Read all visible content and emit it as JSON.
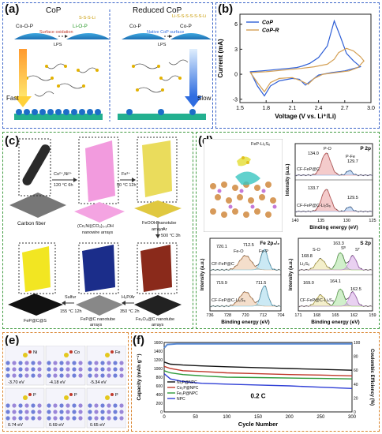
{
  "panels": {
    "a": {
      "label": "(a)",
      "left_title": "CoP",
      "right_title": "Reduced CoP",
      "left_chem_top": "Co-O-P",
      "left_chem_product": "Li-O-P",
      "left_chain": "S-S-S-Li",
      "surface_oxidation": "Surface oxidation",
      "lps_left": "LPS",
      "right_chem_top": "Co-P",
      "right_chem_product": "Co-P",
      "right_chain": "Li-S-S-S-S-S-S-Li",
      "native_surface": "Native CoP surface",
      "lps_right": "LPS",
      "fast": "Fast",
      "slow": "Slow"
    },
    "b": {
      "label": "(b)",
      "ylabel": "Current (mA)",
      "xlabel": "Voltage (V vs. Li⁺/Li)"
    },
    "c": {
      "label": "(c)",
      "carbon_fiber": "Carbon fiber",
      "step1": "Co²⁺,Ni²⁺",
      "step1_cond": "120 °C 6h",
      "nanowire": "(Co,Ni)(CO₃)₀.₅OH",
      "nanowire2": "nanowire arrays",
      "step2": "Fe³⁺",
      "step2_cond": "50 °C 12h",
      "feooh": "FeOOH nanotube",
      "feooh2": "arrays",
      "step3": "Ar",
      "step3_cond": "500 °C 3h",
      "fep_cs": "FeP@C@S",
      "sulfur": "Sulfur",
      "sulfur_cond": "155 °C 12h",
      "fep_c": "FeP@C nanotube",
      "fep_c2": "arrays",
      "h3p": "H₃P/Ar",
      "h3p_cond": "350 °C 2h",
      "fe2o3": "Fe₂O₃@C nanotube",
      "fe2o3_2": "arrays"
    },
    "d": {
      "label": "(d)",
      "struct_title": "FeP-Li₂S₆",
      "p2p_title": "P 2p",
      "p2p_peaks": [
        "134.0",
        "129.7",
        "133.7",
        "129.5"
      ],
      "p2p_labels": [
        "P-O",
        "P-Fe"
      ],
      "p2p_samples": [
        "CF-FeP@C",
        "CF-FeP@C-Li₂S₆"
      ],
      "p2p_xticks": [
        "140",
        "135",
        "130",
        "125"
      ],
      "fe2p_title": "Fe 2p₃/₂",
      "fe2p_peaks": [
        "720.1",
        "712.5",
        "719.9",
        "711.5"
      ],
      "fe2p_labels": [
        "Fe-O",
        "Fe-P"
      ],
      "fe2p_samples": [
        "CF-FeP@C",
        "CF-FeP@C-Li₂S₆"
      ],
      "fe2p_xticks": [
        "736",
        "728",
        "720",
        "712",
        "704"
      ],
      "s2p_title": "S 2p",
      "s2p_peaks": [
        "168.8",
        "163.3",
        "169.0",
        "164.1",
        "162.5"
      ],
      "s2p_labels": [
        "S-O",
        "Sᴮ",
        "Sᵀ"
      ],
      "s2p_sample": "Li₂S₆",
      "s2p_sample2": "CF-FeP@C-Li₂S₆",
      "s2p_xticks": [
        "171",
        "168",
        "165",
        "162",
        "159"
      ],
      "ylabel": "Intensity (a.u.)",
      "xlabel": "Binding energy (eV)"
    },
    "e": {
      "label": "(e)",
      "energies": [
        "-3.70 eV",
        "-4.18 eV",
        "-5.34 eV",
        "0.74 eV",
        "0.69 eV",
        "0.65 eV"
      ],
      "atoms": [
        "Ni",
        "Co",
        "Fe",
        "P",
        "P",
        "P"
      ]
    },
    "f": {
      "label": "(f)",
      "ylabel": "Capacity (mAh g⁻¹)",
      "y2label": "Coulombic Efficiency (%)",
      "xlabel": "Cycle Number",
      "rate": "0.2 C"
    }
  },
  "chart_data": [
    {
      "type": "line",
      "panel": "b",
      "title": "",
      "xlabel": "Voltage (V vs. Li⁺/Li)",
      "ylabel": "Current (mA)",
      "xlim": [
        1.5,
        3.0
      ],
      "ylim": [
        -3.4,
        7.2
      ],
      "x_ticks": [
        "1.5",
        "1.8",
        "2.1",
        "2.4",
        "2.7",
        "3.0"
      ],
      "y_ticks": [
        "-3",
        "0",
        "3",
        "6"
      ],
      "legend_position": "top-left",
      "series": [
        {
          "name": "CoP",
          "color": "#2f5fd6",
          "x": [
            1.62,
            1.75,
            1.85,
            1.95,
            2.05,
            2.15,
            2.22,
            2.3,
            2.4,
            2.5,
            2.58,
            2.65,
            2.72,
            2.8,
            2.88,
            2.7,
            2.55,
            2.4,
            2.3,
            2.25,
            2.18,
            2.1,
            1.95,
            1.85,
            1.78,
            1.7,
            1.62
          ],
          "y": [
            0.3,
            0.4,
            0.5,
            0.6,
            0.7,
            0.8,
            1.0,
            1.3,
            2.0,
            3.4,
            6.4,
            4.5,
            2.5,
            1.6,
            0.9,
            0.4,
            0.2,
            -0.1,
            -0.9,
            -1.3,
            -0.6,
            -0.5,
            -0.8,
            -1.4,
            -2.6,
            -1.4,
            0.3
          ]
        },
        {
          "name": "CoP-R",
          "color": "#d4a055",
          "x": [
            1.62,
            1.8,
            2.0,
            2.2,
            2.35,
            2.5,
            2.58,
            2.63,
            2.72,
            2.8,
            2.88,
            2.92,
            2.85,
            2.75,
            2.6,
            2.45,
            2.35,
            2.28,
            2.2,
            2.1,
            1.95,
            1.85,
            1.78,
            1.7,
            1.62
          ],
          "y": [
            0.2,
            0.3,
            0.5,
            0.7,
            0.9,
            1.2,
            1.8,
            2.6,
            3.1,
            2.8,
            2.1,
            1.6,
            0.8,
            0.4,
            0.2,
            0.0,
            -0.5,
            -1.2,
            -0.8,
            -0.4,
            -0.5,
            -1.0,
            -2.1,
            -1.0,
            0.2
          ]
        }
      ]
    },
    {
      "type": "line",
      "panel": "f",
      "title": "",
      "xlabel": "Cycle Number",
      "ylabel": "Capacity (mAh g⁻¹)",
      "y2label": "Coulombic Efficiency (%)",
      "xlim": [
        0,
        300
      ],
      "ylim": [
        0,
        1600
      ],
      "y2lim": [
        0,
        100
      ],
      "x_ticks": [
        "0",
        "50",
        "100",
        "150",
        "200",
        "250",
        "300"
      ],
      "y_ticks": [
        "0",
        "200",
        "400",
        "600",
        "800",
        "1000",
        "1200",
        "1400",
        "1600"
      ],
      "y2_ticks": [
        "0",
        "20",
        "40",
        "60",
        "80",
        "100"
      ],
      "legend_position": "bottom-left",
      "series": [
        {
          "name": "Ni₂P@NPC",
          "color": "#111111",
          "x": [
            0,
            10,
            30,
            60,
            100,
            150,
            200,
            250,
            300
          ],
          "y": [
            1150,
            1100,
            1080,
            1060,
            1040,
            1020,
            1000,
            980,
            960
          ]
        },
        {
          "name": "Co₂P@NPC",
          "color": "#c0392b",
          "x": [
            0,
            10,
            30,
            60,
            100,
            150,
            200,
            250,
            300
          ],
          "y": [
            1050,
            1000,
            950,
            930,
            900,
            880,
            860,
            850,
            830
          ]
        },
        {
          "name": "Fe₂P@NPC",
          "color": "#2e9a3a",
          "x": [
            0,
            10,
            30,
            60,
            100,
            150,
            200,
            250,
            300
          ],
          "y": [
            950,
            900,
            860,
            830,
            800,
            790,
            780,
            770,
            760
          ]
        },
        {
          "name": "NPC",
          "color": "#2f3fd6",
          "x": [
            0,
            10,
            30,
            60,
            100,
            150,
            200,
            250,
            300
          ],
          "y": [
            880,
            760,
            700,
            660,
            640,
            620,
            600,
            570,
            540
          ]
        },
        {
          "name": "",
          "color": "#5b8dd9",
          "axis": "y2",
          "x": [
            0,
            5,
            20,
            300
          ],
          "y": [
            92,
            97,
            98,
            98
          ]
        }
      ]
    }
  ]
}
